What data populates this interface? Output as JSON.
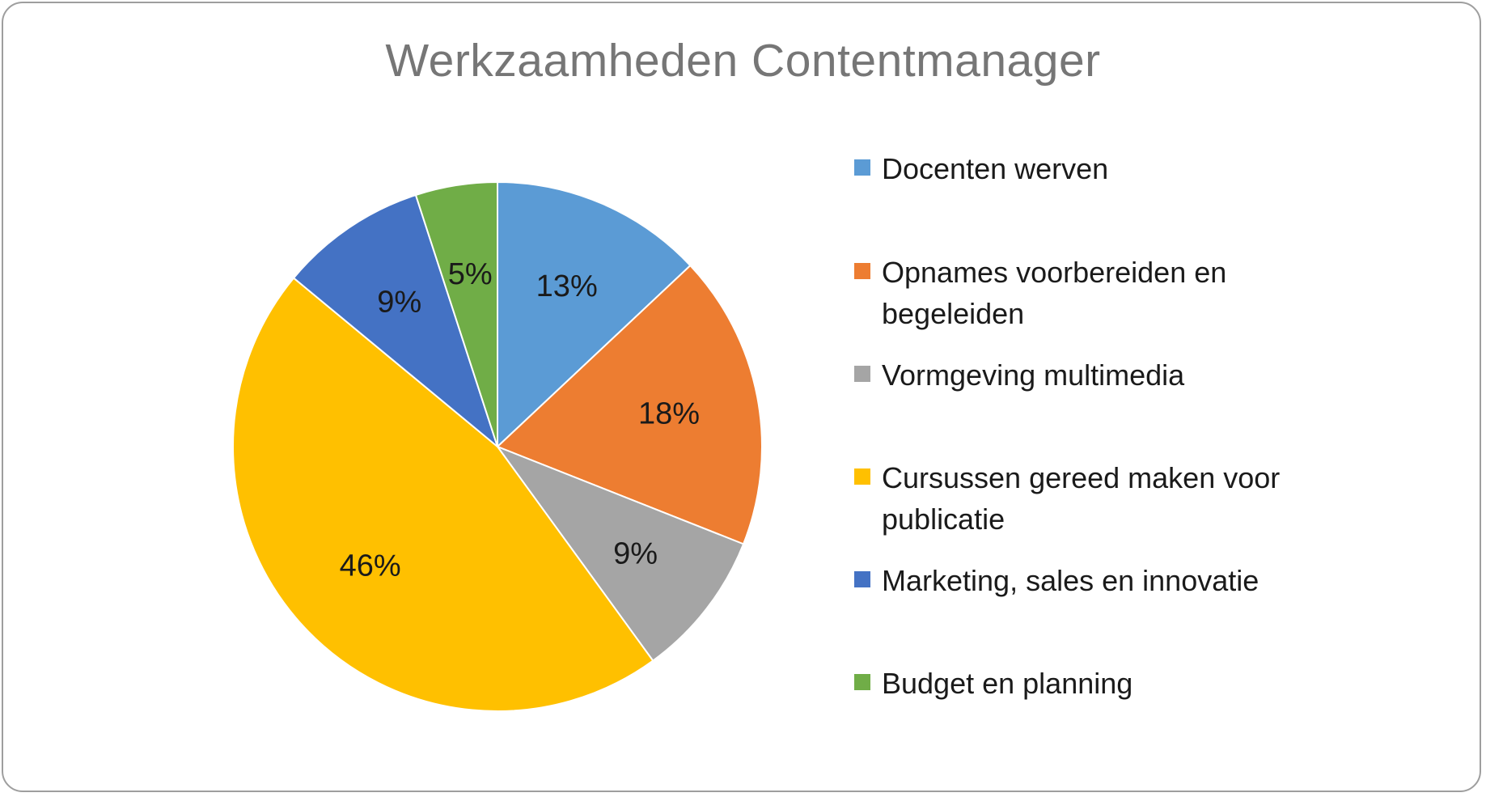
{
  "chart_data": {
    "type": "pie",
    "title": "Werkzaamheden Contentmanager",
    "slices": [
      {
        "label": "Docenten werven",
        "value": 13,
        "display": "13%",
        "color": "#5B9BD5"
      },
      {
        "label": "Opnames voorbereiden en begeleiden",
        "value": 18,
        "display": "18%",
        "color": "#ED7D31"
      },
      {
        "label": "Vormgeving multimedia",
        "value": 9,
        "display": "9%",
        "color": "#A5A5A5"
      },
      {
        "label": "Cursussen gereed maken voor publicatie",
        "value": 46,
        "display": "46%",
        "color": "#FFC000"
      },
      {
        "label": "Marketing, sales en innovatie",
        "value": 9,
        "display": "9%",
        "color": "#4472C4"
      },
      {
        "label": "Budget en planning",
        "value": 5,
        "display": "5%",
        "color": "#70AD47"
      }
    ],
    "legend_position": "right",
    "start_angle": "12 o'clock",
    "direction": "clockwise"
  }
}
